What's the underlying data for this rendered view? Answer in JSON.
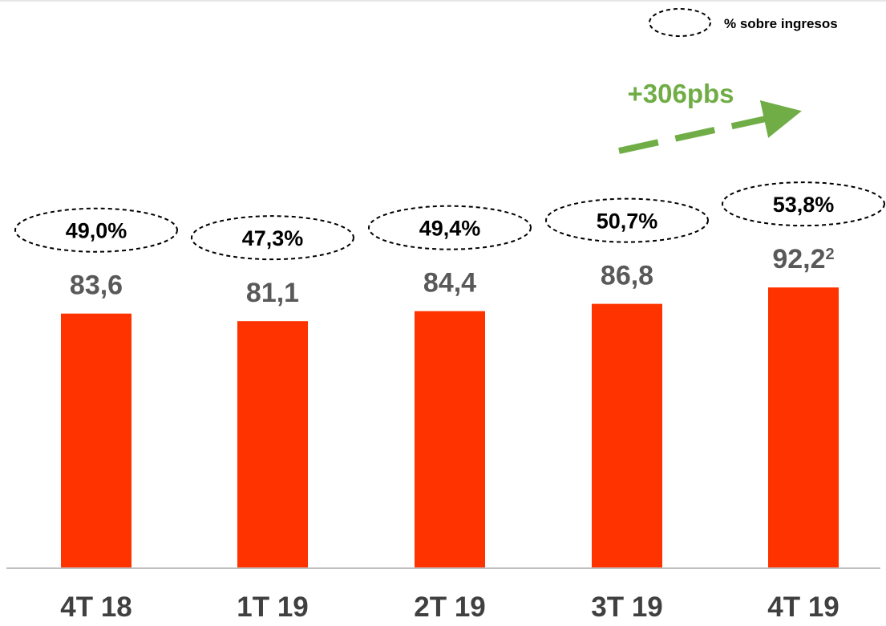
{
  "chart_data": {
    "type": "bar",
    "categories": [
      "4T 18",
      "1T 19",
      "2T 19",
      "3T 19",
      "4T 19"
    ],
    "values": [
      83.6,
      81.1,
      84.4,
      86.8,
      92.2
    ],
    "value_labels": [
      "83,6",
      "81,1",
      "84,4",
      "86,8",
      "92,2"
    ],
    "value_label_superscripts": [
      "",
      "",
      "",
      "",
      "2"
    ],
    "percent_labels": [
      "49,0%",
      "47,3%",
      "49,4%",
      "50,7%",
      "53,8%"
    ],
    "legend": {
      "text": "% sobre ingresos",
      "placement": "top-right"
    },
    "annotation": {
      "text": "+306pbs"
    },
    "ylim": [
      0,
      120
    ],
    "grid": false,
    "colors": {
      "bar": "#ff3300",
      "value_text": "#595959",
      "label_text": "#000000",
      "axis_text": "#404040",
      "annotation": "#70ad47",
      "axis_line": "#bfbfbf",
      "top_line": "#e6e6e6"
    }
  }
}
